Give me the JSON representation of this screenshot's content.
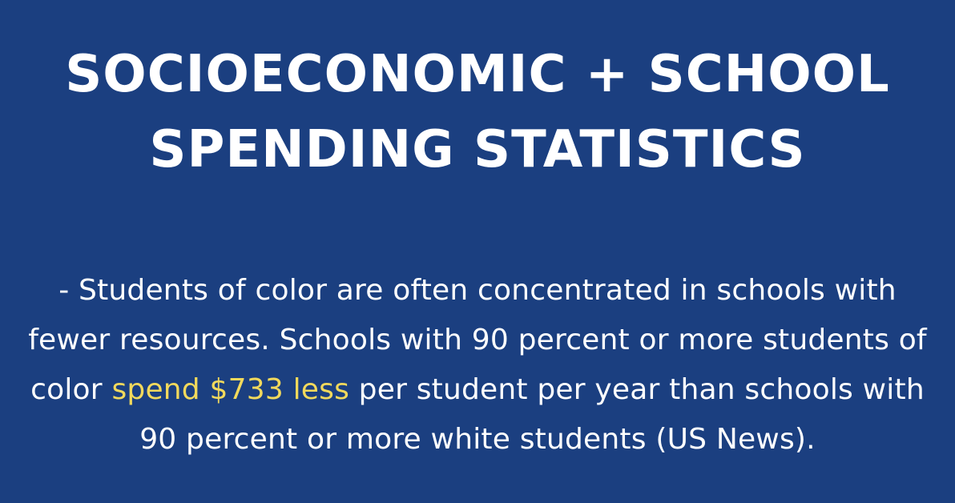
{
  "title": {
    "line1": "SOCIOECONOMIC + SCHOOL",
    "line2": "SPENDING STATISTICS"
  },
  "body": {
    "before_highlight": "- Students of color are often concentrated in schools with fewer resources. Schools with 90 percent or more students of color ",
    "highlight": "spend $733 less",
    "after_highlight": " per student per year than schools with 90 percent or more white students (US News)."
  },
  "colors": {
    "background": "#1b3f80",
    "text": "#ffffff",
    "highlight": "#f2d95c"
  }
}
